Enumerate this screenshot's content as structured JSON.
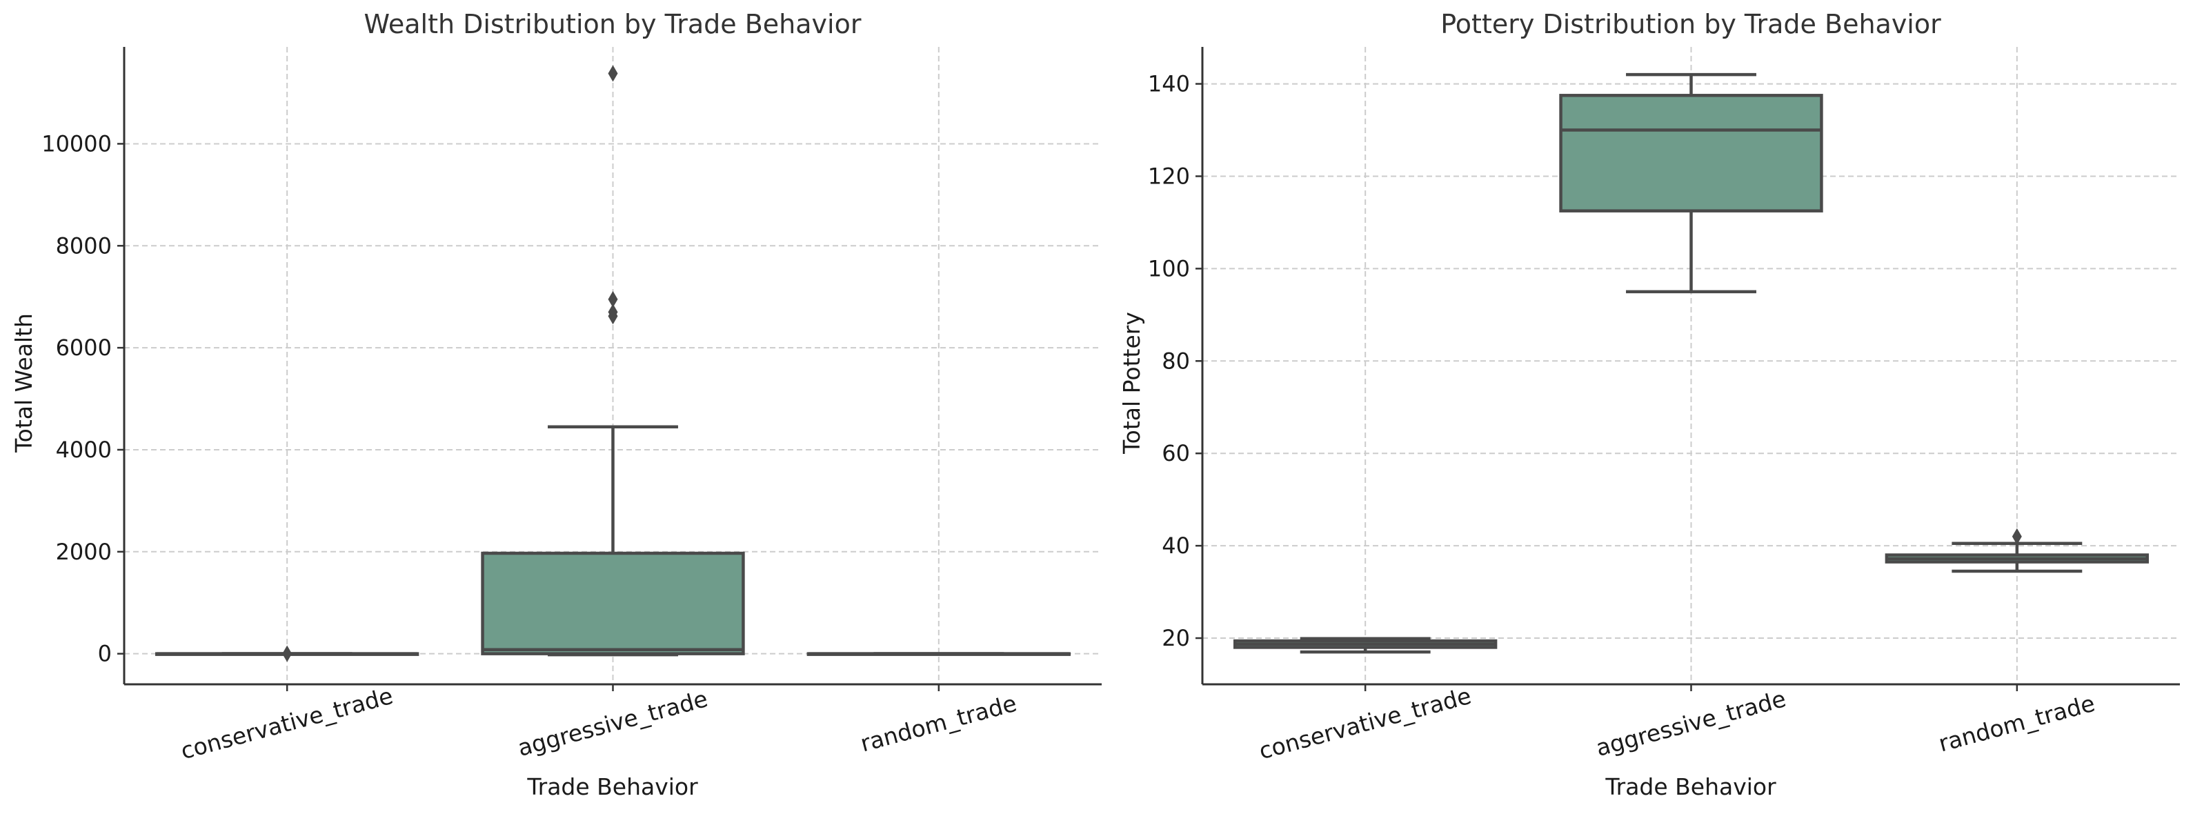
{
  "colors": {
    "box_fill": "#6f9c8b",
    "line": "#4a4a4a",
    "grid": "#cccccc",
    "axis": "#333333"
  },
  "chart_data": [
    {
      "type": "box",
      "title": "Wealth Distribution by Trade Behavior",
      "xlabel": "Trade Behavior",
      "ylabel": "Total Wealth",
      "categories": [
        "conservative_trade",
        "aggressive_trade",
        "random_trade"
      ],
      "ylim": [
        -600,
        11900
      ],
      "yticks": [
        0,
        2000,
        4000,
        6000,
        8000,
        10000
      ],
      "grid": true,
      "boxes": [
        {
          "category": "conservative_trade",
          "min": 0,
          "q1": 0,
          "median": 0,
          "q3": 0,
          "max": 0,
          "outliers": [
            0
          ]
        },
        {
          "category": "aggressive_trade",
          "min": -20,
          "q1": 0,
          "median": 80,
          "q3": 1970,
          "max": 4450,
          "outliers": [
            6620,
            6700,
            6950,
            11380
          ]
        },
        {
          "category": "random_trade",
          "min": 0,
          "q1": 0,
          "median": 0,
          "q3": 0,
          "max": 0,
          "outliers": []
        }
      ]
    },
    {
      "type": "box",
      "title": "Pottery Distribution by Trade Behavior",
      "xlabel": "Trade Behavior",
      "ylabel": "Total Pottery",
      "categories": [
        "conservative_trade",
        "aggressive_trade",
        "random_trade"
      ],
      "ylim": [
        10,
        148
      ],
      "yticks": [
        20,
        40,
        60,
        80,
        100,
        120,
        140
      ],
      "grid": true,
      "boxes": [
        {
          "category": "conservative_trade",
          "min": 17,
          "q1": 18,
          "median": 18.7,
          "q3": 19.4,
          "max": 19.9,
          "outliers": []
        },
        {
          "category": "aggressive_trade",
          "min": 95,
          "q1": 112.5,
          "median": 130,
          "q3": 137.5,
          "max": 142,
          "outliers": []
        },
        {
          "category": "random_trade",
          "min": 34.5,
          "q1": 36.5,
          "median": 37.2,
          "q3": 38,
          "max": 40.5,
          "outliers": [
            42
          ]
        }
      ]
    }
  ]
}
